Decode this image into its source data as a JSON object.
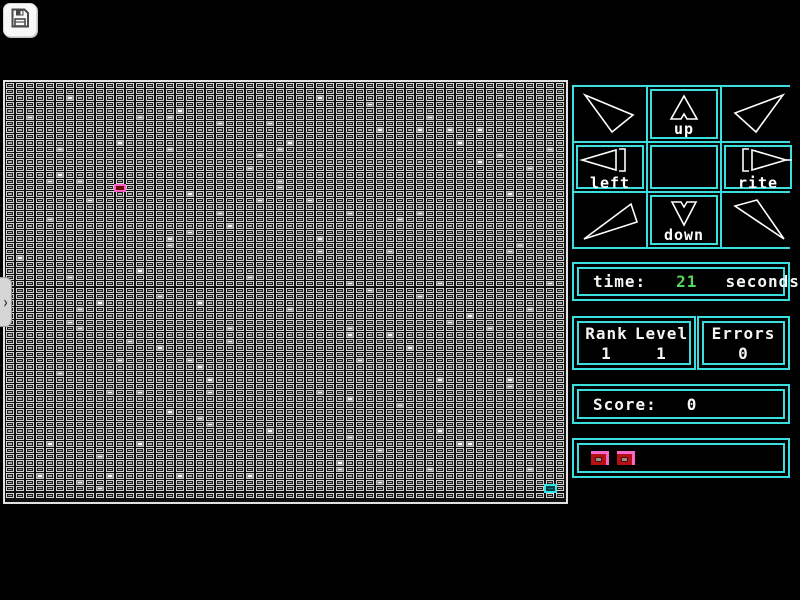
{
  "toolbar": {
    "save_icon": "save-floppy"
  },
  "left_tab": {
    "chevron": "›"
  },
  "controls": {
    "up_label": "up",
    "down_label": "down",
    "left_label": "left",
    "right_label": "rite"
  },
  "stats": {
    "time_label": "time:",
    "time_value": "21",
    "time_unit": "seconds",
    "rank_label": "Rank",
    "level_label": "Level",
    "rank_value": "1",
    "level_value": "1",
    "errors_label": "Errors",
    "errors_value": "0",
    "score_label": "Score:",
    "score_value": "0",
    "lives_count": 2
  },
  "colors": {
    "accent_cyan": "#3adede",
    "time_green": "#55d955",
    "player_pink": "#f75fc6",
    "player_red": "#a81414",
    "goal_teal": "#0b7474",
    "cell_gray": "#a8a8a8"
  },
  "grid": {
    "cols": 56,
    "rows": 65,
    "player": {
      "col": 11,
      "row": 16
    },
    "goal": {
      "col": 54,
      "row": 63
    },
    "white_cells": [
      [
        6,
        2
      ],
      [
        17,
        4
      ],
      [
        16,
        5
      ],
      [
        13,
        5
      ],
      [
        2,
        5
      ],
      [
        26,
        6
      ],
      [
        21,
        6
      ],
      [
        11,
        9
      ],
      [
        5,
        10
      ],
      [
        27,
        10
      ],
      [
        16,
        10
      ],
      [
        25,
        11
      ],
      [
        24,
        13
      ],
      [
        5,
        14
      ],
      [
        4,
        15
      ],
      [
        7,
        15
      ],
      [
        27,
        15
      ],
      [
        27,
        16
      ],
      [
        8,
        18
      ],
      [
        18,
        17
      ],
      [
        25,
        18
      ],
      [
        4,
        21
      ],
      [
        21,
        20
      ],
      [
        22,
        22
      ],
      [
        18,
        23
      ],
      [
        16,
        24
      ],
      [
        16,
        25
      ],
      [
        1,
        27
      ],
      [
        13,
        29
      ],
      [
        6,
        30
      ],
      [
        24,
        30
      ],
      [
        31,
        2
      ],
      [
        36,
        3
      ],
      [
        42,
        5
      ],
      [
        41,
        7
      ],
      [
        44,
        7
      ],
      [
        47,
        7
      ],
      [
        37,
        7
      ],
      [
        28,
        9
      ],
      [
        45,
        9
      ],
      [
        54,
        10
      ],
      [
        49,
        11
      ],
      [
        47,
        12
      ],
      [
        52,
        13
      ],
      [
        50,
        17
      ],
      [
        30,
        18
      ],
      [
        34,
        20
      ],
      [
        39,
        21
      ],
      [
        41,
        20
      ],
      [
        51,
        25
      ],
      [
        31,
        24
      ],
      [
        31,
        26
      ],
      [
        38,
        26
      ],
      [
        50,
        26
      ],
      [
        34,
        31
      ],
      [
        43,
        31
      ],
      [
        54,
        31
      ],
      [
        36,
        32
      ],
      [
        9,
        34
      ],
      [
        15,
        33
      ],
      [
        19,
        34
      ],
      [
        7,
        35
      ],
      [
        28,
        35
      ],
      [
        6,
        37
      ],
      [
        7,
        38
      ],
      [
        22,
        38
      ],
      [
        12,
        40
      ],
      [
        15,
        41
      ],
      [
        22,
        40
      ],
      [
        11,
        43
      ],
      [
        18,
        43
      ],
      [
        19,
        44
      ],
      [
        5,
        45
      ],
      [
        20,
        46
      ],
      [
        10,
        48
      ],
      [
        13,
        48
      ],
      [
        20,
        48
      ],
      [
        16,
        51
      ],
      [
        19,
        52
      ],
      [
        20,
        53
      ],
      [
        26,
        54
      ],
      [
        4,
        56
      ],
      [
        13,
        56
      ],
      [
        9,
        58
      ],
      [
        3,
        61
      ],
      [
        10,
        61
      ],
      [
        17,
        61
      ],
      [
        24,
        61
      ],
      [
        7,
        62
      ],
      [
        9,
        63
      ],
      [
        41,
        33
      ],
      [
        52,
        35
      ],
      [
        46,
        36
      ],
      [
        44,
        37
      ],
      [
        48,
        38
      ],
      [
        34,
        38
      ],
      [
        34,
        39
      ],
      [
        38,
        39
      ],
      [
        40,
        41
      ],
      [
        35,
        43
      ],
      [
        43,
        46
      ],
      [
        50,
        46
      ],
      [
        50,
        47
      ],
      [
        31,
        48
      ],
      [
        34,
        49
      ],
      [
        39,
        50
      ],
      [
        43,
        54
      ],
      [
        34,
        55
      ],
      [
        45,
        56
      ],
      [
        46,
        56
      ],
      [
        37,
        57
      ],
      [
        33,
        59
      ],
      [
        42,
        60
      ],
      [
        33,
        60
      ],
      [
        52,
        60
      ],
      [
        37,
        62
      ]
    ]
  }
}
